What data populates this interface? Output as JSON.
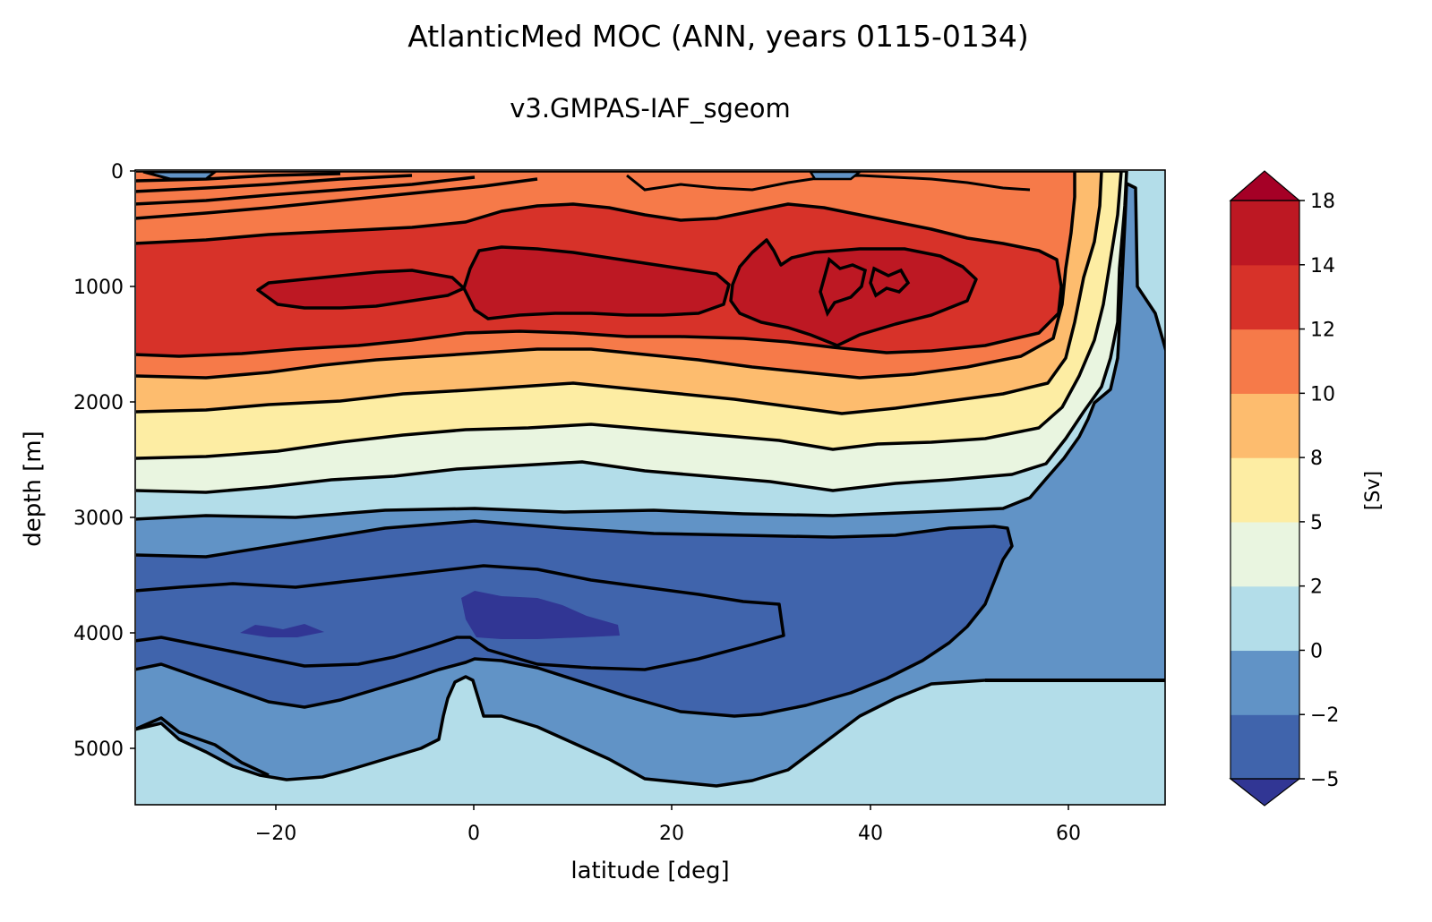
{
  "chart_data": {
    "type": "heatmap",
    "subtype": "filled-contour",
    "title": "AtlanticMed MOC (ANN, years 0115-0134)",
    "subtitle": "v3.GMPAS-IAF_sgeom",
    "xlabel": "latitude [deg]",
    "ylabel": "depth [m]",
    "xlim": [
      -34,
      70
    ],
    "ylim": [
      0,
      5500
    ],
    "y_inverted": true,
    "xticks": [
      -20,
      0,
      20,
      40,
      60
    ],
    "yticks": [
      0,
      1000,
      2000,
      3000,
      4000,
      5000
    ],
    "colorbar": {
      "label": "[Sv]",
      "levels": [
        -5,
        -2,
        0,
        2,
        5,
        8,
        10,
        12,
        14,
        18
      ],
      "tick_labels": [
        "−5",
        "−2",
        "0",
        "2",
        "5",
        "8",
        "10",
        "12",
        "14",
        "18"
      ],
      "colors": [
        "#4064ac",
        "#6193c6",
        "#b3dde9",
        "#e9f5e0",
        "#fdeda3",
        "#fdbc6e",
        "#f67a49",
        "#d73229",
        "#bd1823"
      ],
      "under_color": "#313694",
      "over_color": "#a50026",
      "extend": "both"
    },
    "features": [
      {
        "name": "upper overturning cell",
        "sign": "positive",
        "max_level": 14,
        "core_lat_range": [
          -22,
          52
        ],
        "core_depth_range": [
          650,
          1550
        ]
      },
      {
        "name": "abyssal cell",
        "sign": "negative",
        "min_level": -5,
        "core_lat_range": [
          -24,
          15
        ],
        "core_depth_range": [
          3600,
          4050
        ]
      }
    ]
  }
}
